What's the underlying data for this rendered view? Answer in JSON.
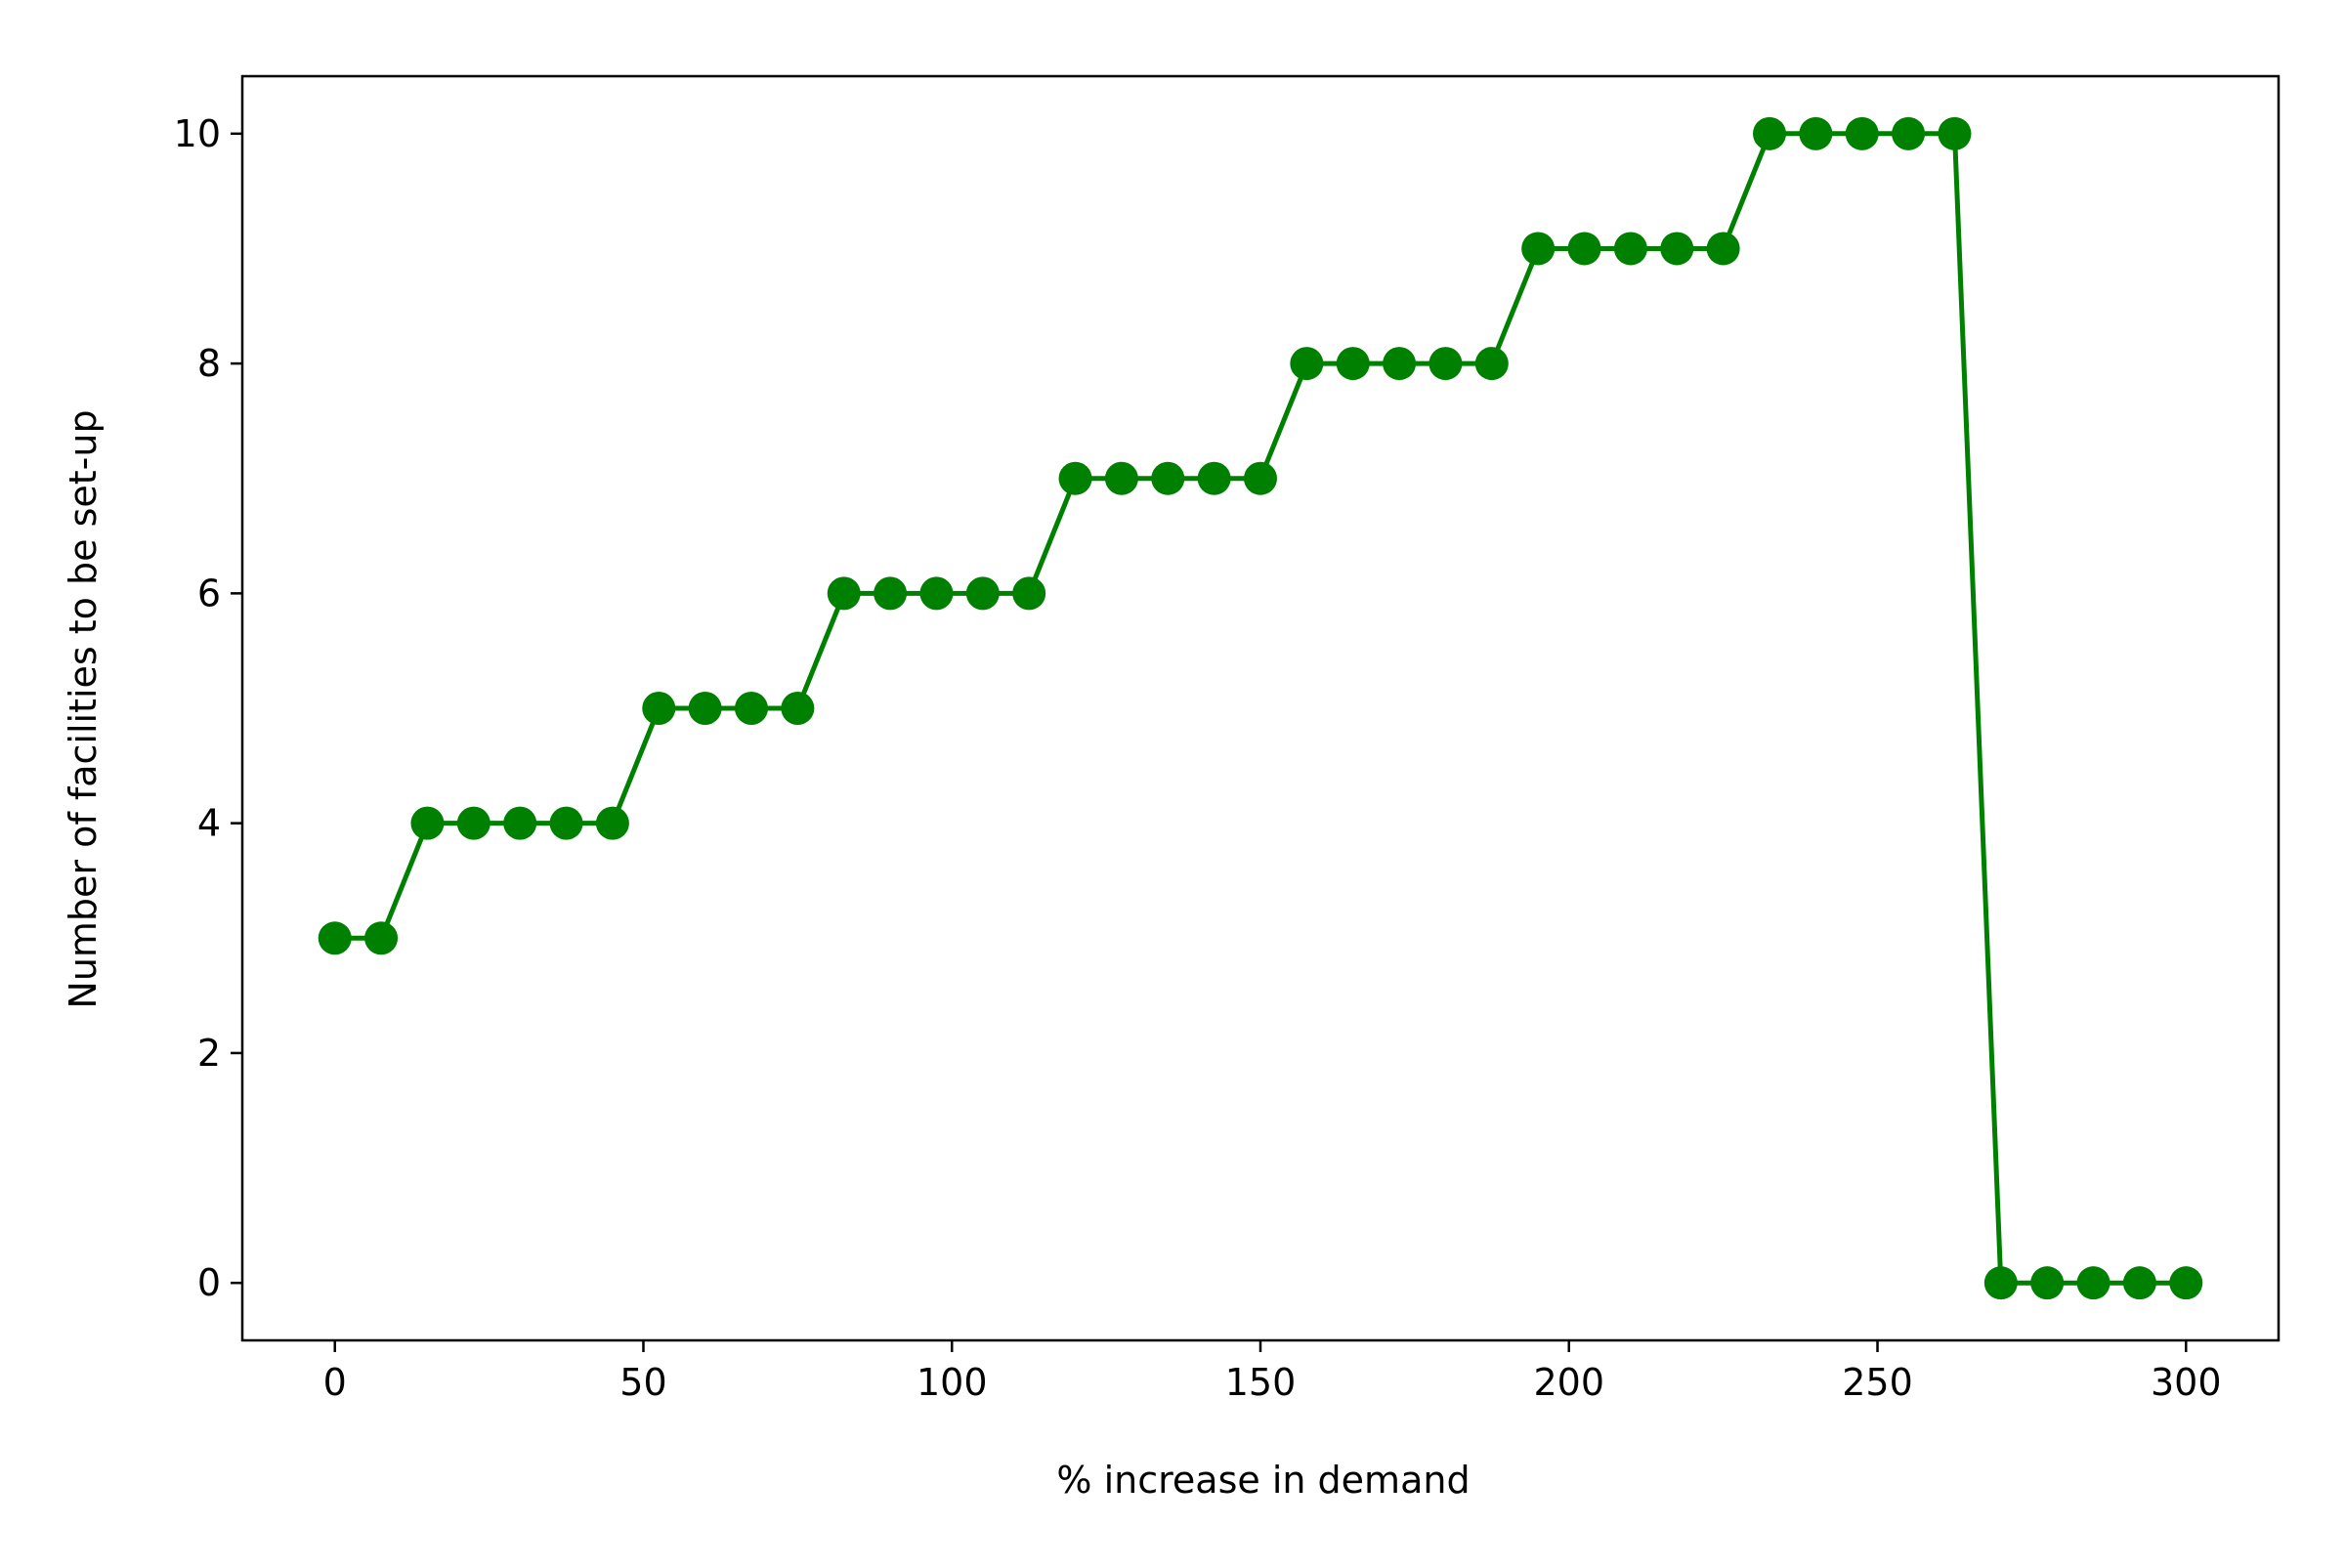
{
  "chart_data": {
    "type": "line",
    "title": "",
    "xlabel": "% increase in demand",
    "ylabel": "Number of facilities to be set-up",
    "xlim": [
      -15,
      315
    ],
    "ylim": [
      -0.5,
      10.5
    ],
    "xticks": [
      0,
      50,
      100,
      150,
      200,
      250,
      300
    ],
    "yticks": [
      0,
      2,
      4,
      6,
      8,
      10
    ],
    "grid": false,
    "legend": "none",
    "series": [
      {
        "color": "#008000",
        "marker": "circle",
        "x": [
          0,
          7.5,
          15,
          22.5,
          30,
          37.5,
          45,
          52.5,
          60,
          67.5,
          75,
          82.5,
          90,
          97.5,
          105,
          112.5,
          120,
          127.5,
          135,
          142.5,
          150,
          157.5,
          165,
          172.5,
          180,
          187.5,
          195,
          202.5,
          210,
          217.5,
          225,
          232.5,
          240,
          247.5,
          255,
          262.5,
          270,
          277.5,
          285,
          292.5,
          300
        ],
        "y": [
          3,
          3,
          4,
          4,
          4,
          4,
          4,
          5,
          5,
          5,
          5,
          6,
          6,
          6,
          6,
          6,
          7,
          7,
          7,
          7,
          7,
          8,
          8,
          8,
          8,
          8,
          9,
          9,
          9,
          9,
          9,
          10,
          10,
          10,
          10,
          10,
          0,
          0,
          0,
          0,
          0
        ]
      }
    ]
  }
}
